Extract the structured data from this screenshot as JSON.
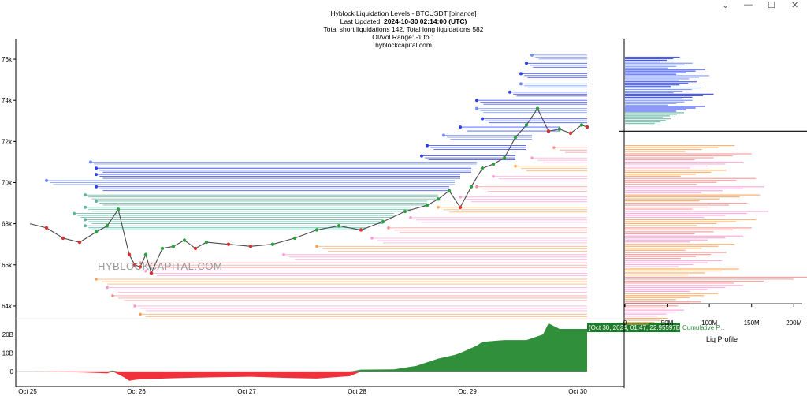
{
  "window_controls": {
    "chevron": "⌄",
    "minimize": "—",
    "maximize": "☐",
    "close": "✕"
  },
  "header": {
    "title": "Hyblock Liquidation Levels - BTCUSDT [binance]",
    "updated_prefix": "Last Updated: ",
    "updated_value": "2024-10-30 02:14:00 (UTC)",
    "totals": "Total short liquidations 142, Total long liquidations 582",
    "range": "OI/Vol Range: -1 to 1",
    "site": "hyblockcapital.com"
  },
  "watermark": "HYBLOCKCAPITAL.COM",
  "colors": {
    "short_liq": "#2b3ff0",
    "short_liq_light": "#6f8cff",
    "teal_liq": "#5fb3a0",
    "long_liq": "#ff8a8a",
    "long_liq_pink": "#ff9ad6",
    "long_liq_orange": "#ffa050",
    "candle_up": "#2e9e40",
    "candle_down": "#d93030",
    "cum_positive": "#2f8f3a",
    "cum_negative": "#f0303a",
    "current_price_line": "#000000"
  },
  "chart_data": [
    {
      "type": "line",
      "name": "price-liquidation-chart",
      "x_ticks": [
        "Oct 25",
        "Oct 26",
        "Oct 27",
        "Oct 28",
        "Oct 29",
        "Oct 30"
      ],
      "y_ticks": [
        "64k",
        "66k",
        "68k",
        "70k",
        "72k",
        "74k",
        "76k"
      ],
      "y_tick_values": [
        64000,
        66000,
        68000,
        70000,
        72000,
        74000,
        76000
      ],
      "ylim": [
        63000,
        77000
      ],
      "xlim": [
        0,
        5.2
      ],
      "grid": false,
      "price_series": {
        "x": [
          0,
          0.15,
          0.3,
          0.45,
          0.6,
          0.7,
          0.8,
          0.9,
          0.95,
          1.0,
          1.05,
          1.1,
          1.2,
          1.3,
          1.4,
          1.5,
          1.6,
          1.8,
          2.0,
          2.2,
          2.4,
          2.6,
          2.8,
          3.0,
          3.2,
          3.4,
          3.6,
          3.7,
          3.8,
          3.9,
          4.0,
          4.1,
          4.2,
          4.3,
          4.4,
          4.5,
          4.6,
          4.7,
          4.8,
          4.9,
          5.0,
          5.05
        ],
        "y": [
          68000,
          67800,
          67300,
          67100,
          67600,
          67900,
          68700,
          66500,
          66000,
          65900,
          66500,
          65600,
          66800,
          66900,
          67200,
          66800,
          67100,
          67000,
          66900,
          67000,
          67300,
          67700,
          67900,
          67700,
          68100,
          68600,
          68900,
          69200,
          69600,
          68800,
          69800,
          70700,
          70900,
          71200,
          72200,
          72800,
          73600,
          72500,
          72600,
          72400,
          72800,
          72700
        ]
      },
      "short_levels": [
        {
          "price": 76200,
          "start": 4.55,
          "end": 5.05
        },
        {
          "price": 75800,
          "start": 4.5,
          "end": 5.05
        },
        {
          "price": 75300,
          "start": 4.45,
          "end": 5.05
        },
        {
          "price": 74800,
          "start": 4.45,
          "end": 5.05
        },
        {
          "price": 74400,
          "start": 4.35,
          "end": 5.05
        },
        {
          "price": 74000,
          "start": 4.05,
          "end": 5.05
        },
        {
          "price": 73600,
          "start": 4.05,
          "end": 5.05
        },
        {
          "price": 73100,
          "start": 4.1,
          "end": 5.05
        },
        {
          "price": 72700,
          "start": 3.9,
          "end": 4.8
        },
        {
          "price": 72300,
          "start": 3.75,
          "end": 4.55
        },
        {
          "price": 71800,
          "start": 3.6,
          "end": 4.5
        },
        {
          "price": 71300,
          "start": 3.55,
          "end": 4.4
        },
        {
          "price": 71000,
          "start": 0.55,
          "end": 4.05
        },
        {
          "price": 70700,
          "start": 0.6,
          "end": 4.0
        },
        {
          "price": 70400,
          "start": 0.6,
          "end": 3.9
        },
        {
          "price": 70100,
          "start": 0.15,
          "end": 3.85
        },
        {
          "price": 69800,
          "start": 0.6,
          "end": 3.8
        },
        {
          "price": 69400,
          "start": 0.5,
          "end": 3.7
        },
        {
          "price": 69100,
          "start": 0.6,
          "end": 3.6
        },
        {
          "price": 68800,
          "start": 0.5,
          "end": 3.45
        },
        {
          "price": 68500,
          "start": 0.4,
          "end": 3.3
        },
        {
          "price": 68200,
          "start": 0.5,
          "end": 3.2
        },
        {
          "price": 67900,
          "start": 0.5,
          "end": 3.05
        }
      ],
      "long_levels": [
        {
          "price": 71700,
          "start": 4.75,
          "end": 5.05
        },
        {
          "price": 71200,
          "start": 4.55,
          "end": 5.05
        },
        {
          "price": 70800,
          "start": 4.4,
          "end": 5.05
        },
        {
          "price": 70300,
          "start": 4.2,
          "end": 5.05
        },
        {
          "price": 69800,
          "start": 4.05,
          "end": 5.05
        },
        {
          "price": 69300,
          "start": 3.9,
          "end": 5.05
        },
        {
          "price": 68800,
          "start": 3.7,
          "end": 5.05
        },
        {
          "price": 68300,
          "start": 3.45,
          "end": 5.05
        },
        {
          "price": 67800,
          "start": 3.25,
          "end": 5.05
        },
        {
          "price": 67300,
          "start": 3.1,
          "end": 5.05
        },
        {
          "price": 66900,
          "start": 2.6,
          "end": 5.05
        },
        {
          "price": 66500,
          "start": 2.3,
          "end": 5.05
        },
        {
          "price": 66100,
          "start": 1.0,
          "end": 5.05
        },
        {
          "price": 65700,
          "start": 1.05,
          "end": 5.05
        },
        {
          "price": 65300,
          "start": 0.6,
          "end": 5.05
        },
        {
          "price": 64900,
          "start": 0.7,
          "end": 5.05
        },
        {
          "price": 64500,
          "start": 0.75,
          "end": 5.05
        },
        {
          "price": 64000,
          "start": 0.95,
          "end": 5.05
        },
        {
          "price": 63600,
          "start": 1.0,
          "end": 5.05
        }
      ]
    },
    {
      "type": "area",
      "name": "cumulative-liquidation-delta",
      "y_ticks": [
        "0",
        "10B",
        "20B"
      ],
      "y_tick_values": [
        0,
        10,
        20
      ],
      "ylim": [
        -7,
        27
      ],
      "x": [
        0,
        0.5,
        0.7,
        0.75,
        0.8,
        0.85,
        0.9,
        0.95,
        1.0,
        1.3,
        1.6,
        2.0,
        2.3,
        2.6,
        2.9,
        3.0,
        3.3,
        3.5,
        3.7,
        3.85,
        3.9,
        4.05,
        4.1,
        4.3,
        4.5,
        4.65,
        4.7,
        4.8,
        5.05
      ],
      "values": [
        0,
        -0.5,
        -1,
        0.5,
        -1.5,
        -3,
        -5,
        -4.5,
        -4.2,
        -3.6,
        -3.2,
        -2.8,
        -3.4,
        -3.8,
        -2.5,
        1,
        1.2,
        3,
        7,
        9,
        10,
        14,
        16,
        17,
        17,
        20,
        26,
        22.96,
        22.96
      ],
      "tooltip": "(Oct 30, 2024, 01:47, 22.95597B)",
      "series_label": "Cumulative P..."
    },
    {
      "type": "bar",
      "name": "liq-profile",
      "xlabel": "Liq Profile",
      "x_ticks": [
        "0",
        "50M",
        "100M",
        "150M",
        "200M"
      ],
      "x_tick_values": [
        0,
        50,
        100,
        150,
        200
      ],
      "xlim": [
        0,
        210
      ],
      "current_price": 72500,
      "short_profile": [
        {
          "price": 76100,
          "value": 65
        },
        {
          "price": 75800,
          "value": 80
        },
        {
          "price": 75500,
          "value": 95
        },
        {
          "price": 75200,
          "value": 100
        },
        {
          "price": 74900,
          "value": 85
        },
        {
          "price": 74600,
          "value": 90
        },
        {
          "price": 74300,
          "value": 105
        },
        {
          "price": 74000,
          "value": 80
        },
        {
          "price": 73700,
          "value": 95
        },
        {
          "price": 73400,
          "value": 70
        },
        {
          "price": 73100,
          "value": 55
        }
      ],
      "long_profile": [
        {
          "price": 71800,
          "value": 130
        },
        {
          "price": 71400,
          "value": 150
        },
        {
          "price": 71000,
          "value": 140
        },
        {
          "price": 70600,
          "value": 120
        },
        {
          "price": 70200,
          "value": 155
        },
        {
          "price": 69800,
          "value": 165
        },
        {
          "price": 69400,
          "value": 160
        },
        {
          "price": 69000,
          "value": 145
        },
        {
          "price": 68600,
          "value": 170
        },
        {
          "price": 68200,
          "value": 155
        },
        {
          "price": 67800,
          "value": 150
        },
        {
          "price": 67400,
          "value": 140
        },
        {
          "price": 67000,
          "value": 130
        },
        {
          "price": 66600,
          "value": 120
        },
        {
          "price": 66200,
          "value": 115
        },
        {
          "price": 65800,
          "value": 135
        },
        {
          "price": 65400,
          "value": 235
        },
        {
          "price": 65000,
          "value": 140
        },
        {
          "price": 64600,
          "value": 110
        },
        {
          "price": 64200,
          "value": 90
        },
        {
          "price": 63800,
          "value": 70
        },
        {
          "price": 63400,
          "value": 50
        }
      ]
    }
  ]
}
